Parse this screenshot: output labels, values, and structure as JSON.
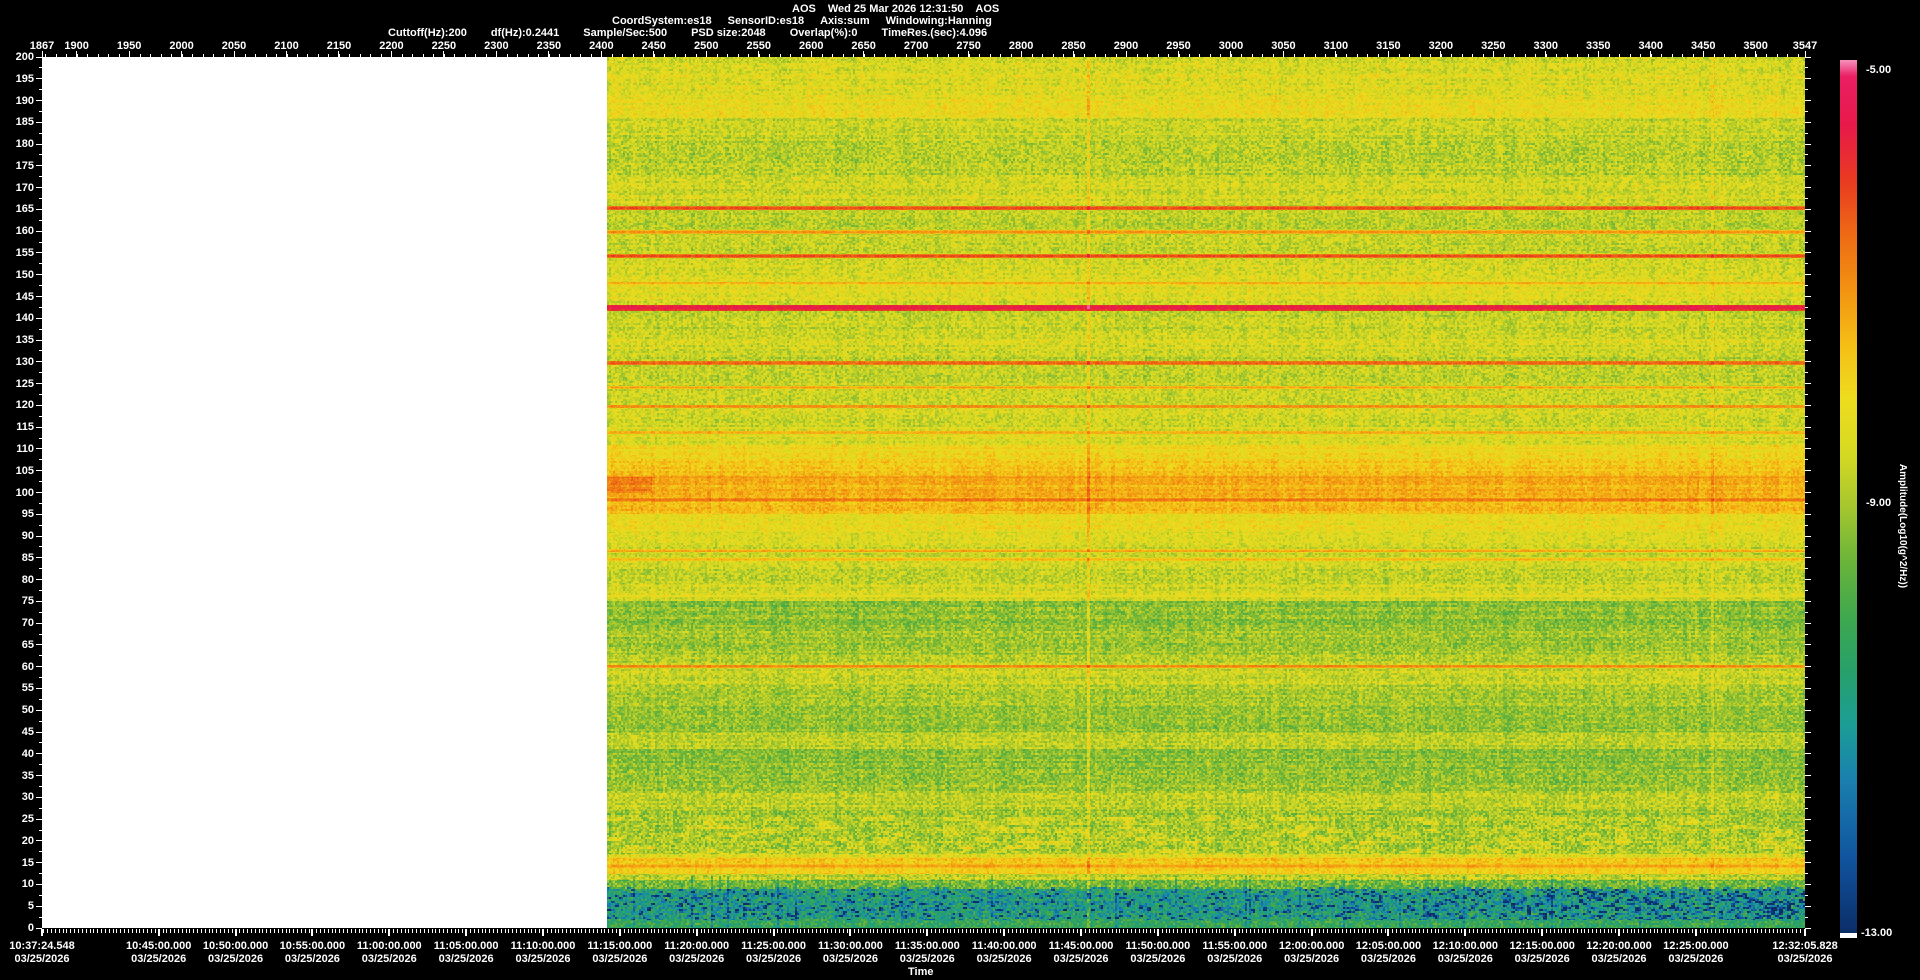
{
  "app": {
    "background": "#000000",
    "text_color": "#ffffff"
  },
  "header": {
    "line1": [
      "AOS",
      "Wed 25 Mar 2026 12:31:50",
      "AOS"
    ],
    "line2": [
      "CoordSystem:es18",
      "SensorID:es18",
      "Axis:sum",
      "Windowing:Hanning"
    ],
    "line3": [
      "Cuttoff(Hz):200",
      "df(Hz):0.2441",
      "Sample/Sec:500",
      "PSD size:2048",
      "Overlap(%):0",
      "TimeRes.(sec):4.096"
    ]
  },
  "chart_data": {
    "type": "heatmap",
    "subtype": "spectrogram-waterfall",
    "x_axis_top": {
      "name": "record-number",
      "range": [
        1867,
        3547
      ],
      "ticks": [
        1867,
        1900,
        1950,
        2000,
        2050,
        2100,
        2150,
        2200,
        2250,
        2300,
        2350,
        2400,
        2450,
        2500,
        2550,
        2600,
        2650,
        2700,
        2750,
        2800,
        2850,
        2900,
        2950,
        3000,
        3050,
        3100,
        3150,
        3200,
        3250,
        3300,
        3350,
        3400,
        3450,
        3500,
        3547
      ],
      "minor_step": 10
    },
    "y_axis": {
      "name": "frequency-hz",
      "range": [
        0,
        200
      ],
      "tick_labels": [
        200,
        195,
        190,
        185,
        180,
        175,
        170,
        165,
        160,
        155,
        150,
        145,
        140,
        135,
        130,
        125,
        120,
        115,
        110,
        105,
        100,
        95,
        90,
        85,
        80,
        75,
        70,
        65,
        60,
        55,
        50,
        45,
        40,
        35,
        30,
        25,
        20,
        15,
        10,
        5,
        0
      ],
      "major_step": 5,
      "minor_step": 2.5
    },
    "x_axis_bottom": {
      "title": "Time",
      "date_label": "03/25/2026",
      "start": {
        "label": "10:37:24.548",
        "sec": 38244.548
      },
      "end": {
        "label": "12:32:05.828",
        "sec": 45125.828
      },
      "major_ticks": [
        {
          "label": "10:45:00.000",
          "sec": 38700
        },
        {
          "label": "10:50:00.000",
          "sec": 39000
        },
        {
          "label": "10:55:00.000",
          "sec": 39300
        },
        {
          "label": "11:00:00.000",
          "sec": 39600
        },
        {
          "label": "11:05:00.000",
          "sec": 39900
        },
        {
          "label": "11:10:00.000",
          "sec": 40200
        },
        {
          "label": "11:15:00.000",
          "sec": 40500
        },
        {
          "label": "11:20:00.000",
          "sec": 40800
        },
        {
          "label": "11:25:00.000",
          "sec": 41100
        },
        {
          "label": "11:30:00.000",
          "sec": 41400
        },
        {
          "label": "11:35:00.000",
          "sec": 41700
        },
        {
          "label": "11:40:00.000",
          "sec": 42000
        },
        {
          "label": "11:45:00.000",
          "sec": 42300
        },
        {
          "label": "11:50:00.000",
          "sec": 42600
        },
        {
          "label": "11:55:00.000",
          "sec": 42900
        },
        {
          "label": "12:00:00.000",
          "sec": 43200
        },
        {
          "label": "12:05:00.000",
          "sec": 43500
        },
        {
          "label": "12:10:00.000",
          "sec": 43800
        },
        {
          "label": "12:15:00.000",
          "sec": 44100
        },
        {
          "label": "12:20:00.000",
          "sec": 44400
        },
        {
          "label": "12:25:00.000",
          "sec": 44700
        }
      ],
      "minor_step_sec": 15
    },
    "colorbar": {
      "title": "Amplitude(Log10(g^2/Hz))",
      "tick_labels": [
        "-5.00",
        "-9.00",
        "-13.00"
      ],
      "range": [
        -13,
        -5
      ],
      "no_data_color": "#ffffff",
      "stops": [
        [
          -13.0,
          "#0b2d67"
        ],
        [
          -12.3,
          "#1155a0"
        ],
        [
          -11.6,
          "#1a7fae"
        ],
        [
          -11.1,
          "#1b9d96"
        ],
        [
          -10.6,
          "#27a06a"
        ],
        [
          -10.1,
          "#3fa84e"
        ],
        [
          -9.6,
          "#6ab43a"
        ],
        [
          -9.1,
          "#a5c62e"
        ],
        [
          -8.6,
          "#d6d922"
        ],
        [
          -8.1,
          "#eedc1e"
        ],
        [
          -7.6,
          "#f5bd16"
        ],
        [
          -7.1,
          "#f29212"
        ],
        [
          -6.6,
          "#ee6a14"
        ],
        [
          -6.1,
          "#e93a22"
        ],
        [
          -5.6,
          "#e7194a"
        ],
        [
          -5.15,
          "#ea1f63"
        ],
        [
          -5.0,
          "#f591bd"
        ]
      ]
    },
    "no_data": {
      "record_range": [
        1867,
        2405
      ],
      "color": "#ffffff"
    },
    "spectrogram": {
      "data_start_record": 2405,
      "bands": [
        [
          196,
          200.01,
          -8.6,
          0.5
        ],
        [
          191,
          196,
          -8.45,
          0.5
        ],
        [
          186,
          191,
          -8.3,
          0.45
        ],
        [
          181,
          186,
          -8.7,
          0.5
        ],
        [
          173,
          181,
          -8.85,
          0.55
        ],
        [
          166,
          173,
          -8.6,
          0.5
        ],
        [
          161,
          166,
          -8.8,
          0.5
        ],
        [
          155,
          161,
          -8.75,
          0.5
        ],
        [
          149,
          155,
          -8.5,
          0.5
        ],
        [
          144,
          149,
          -8.35,
          0.45
        ],
        [
          137,
          144,
          -8.7,
          0.5
        ],
        [
          131,
          137,
          -8.55,
          0.5
        ],
        [
          126,
          131,
          -8.9,
          0.5
        ],
        [
          121,
          126,
          -8.75,
          0.5
        ],
        [
          115,
          121,
          -8.6,
          0.5
        ],
        [
          111,
          115,
          -8.45,
          0.45
        ],
        [
          108,
          111,
          -8.1,
          0.4
        ],
        [
          104,
          108,
          -7.75,
          0.35
        ],
        [
          99,
          104,
          -7.45,
          0.3
        ],
        [
          95,
          99,
          -7.6,
          0.35
        ],
        [
          91,
          95,
          -8.2,
          0.4
        ],
        [
          88,
          91,
          -8.5,
          0.45
        ],
        [
          83,
          88,
          -8.6,
          0.45
        ],
        [
          79,
          83,
          -8.75,
          0.5
        ],
        [
          75,
          79,
          -8.55,
          0.5
        ],
        [
          69,
          75,
          -9.3,
          0.5
        ],
        [
          63,
          69,
          -9.15,
          0.5
        ],
        [
          61,
          63,
          -8.9,
          0.5
        ],
        [
          56,
          61,
          -8.7,
          0.5
        ],
        [
          51,
          56,
          -9.0,
          0.5
        ],
        [
          45,
          51,
          -9.25,
          0.5
        ],
        [
          41,
          45,
          -8.85,
          0.5
        ],
        [
          36,
          41,
          -9.3,
          0.5
        ],
        [
          31,
          36,
          -9.15,
          0.55
        ],
        [
          27,
          31,
          -8.8,
          0.55
        ],
        [
          22,
          27,
          -9.1,
          0.6
        ],
        [
          17,
          22,
          -8.95,
          0.65
        ],
        [
          16,
          17,
          -8.4,
          0.5
        ],
        [
          12.5,
          16,
          -7.8,
          0.45
        ],
        [
          11,
          12.5,
          -8.8,
          0.6
        ],
        [
          9,
          11,
          -9.6,
          0.7
        ],
        [
          2,
          9,
          -10.9,
          0.9
        ],
        [
          0,
          2,
          -10.4,
          0.7
        ]
      ],
      "tonal_lines": [
        [
          165.3,
          0.45,
          -6.35
        ],
        [
          159.8,
          0.4,
          -7.1
        ],
        [
          154.3,
          0.45,
          -6.3
        ],
        [
          148.1,
          0.35,
          -7.3
        ],
        [
          142.4,
          0.7,
          -5.55
        ],
        [
          129.8,
          0.45,
          -6.55
        ],
        [
          124.2,
          0.35,
          -7.4
        ],
        [
          119.8,
          0.4,
          -7.0
        ],
        [
          113.8,
          0.4,
          -7.3
        ],
        [
          110.0,
          0.35,
          -7.9
        ],
        [
          103.5,
          0.4,
          -7.1
        ],
        [
          98.3,
          0.45,
          -6.75
        ],
        [
          86.6,
          0.35,
          -7.3
        ],
        [
          84.6,
          0.35,
          -7.55
        ],
        [
          76.2,
          0.35,
          -8.15
        ],
        [
          60.1,
          0.4,
          -7.05
        ],
        [
          14.2,
          0.6,
          -7.35
        ]
      ],
      "vertical_event_records": [
        2864,
        3458
      ],
      "bottom_patch_band_hz": [
        1.8,
        9.5
      ],
      "yellow_patch_band_hz": [
        17,
        26
      ]
    }
  }
}
